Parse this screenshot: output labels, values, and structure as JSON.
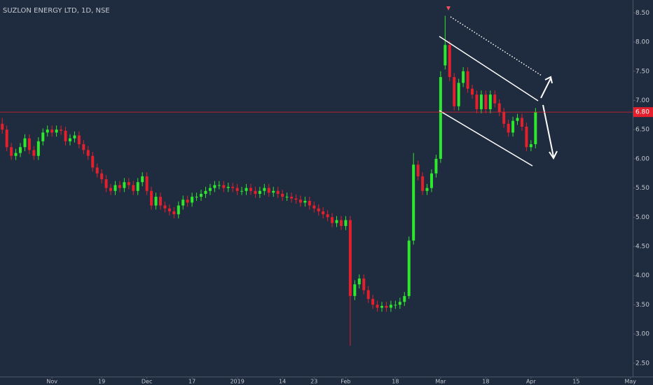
{
  "chart_data": {
    "type": "candlestick",
    "title": "SUZLON ENERGY LTD, 1D, NSE",
    "open": [
      6.6,
      6.5,
      6.2,
      6.05,
      6.1,
      6.2,
      6.35,
      6.15,
      6.05,
      6.3,
      6.45,
      6.5,
      6.45,
      6.5,
      6.48,
      6.3,
      6.35,
      6.4,
      6.25,
      6.15,
      6.05,
      5.85,
      5.75,
      5.65,
      5.5,
      5.45,
      5.55,
      5.5,
      5.6,
      5.55,
      5.45,
      5.6,
      5.7,
      5.45,
      5.2,
      5.35,
      5.2,
      5.15,
      5.1,
      5.05,
      5.2,
      5.3,
      5.25,
      5.35,
      5.35,
      5.4,
      5.45,
      5.5,
      5.55,
      5.55,
      5.5,
      5.52,
      5.5,
      5.45,
      5.45,
      5.5,
      5.45,
      5.4,
      5.45,
      5.5,
      5.42,
      5.45,
      5.4,
      5.35,
      5.35,
      5.32,
      5.3,
      5.25,
      5.28,
      5.2,
      5.15,
      5.1,
      5.05,
      5.0,
      4.9,
      4.95,
      4.85,
      4.95,
      3.65,
      3.85,
      3.95,
      3.75,
      3.6,
      3.5,
      3.45,
      3.48,
      3.45,
      3.5,
      3.5,
      3.55,
      3.65,
      4.6,
      5.9,
      5.7,
      5.45,
      5.5,
      5.75,
      6.0,
      7.6,
      7.95,
      7.4,
      6.9,
      7.3,
      7.5,
      7.2,
      7.1,
      6.85,
      7.1,
      6.85,
      7.1,
      6.95,
      6.8,
      6.6,
      6.45,
      6.65,
      6.7,
      6.55,
      6.2,
      6.25
    ],
    "high": [
      6.7,
      6.57,
      6.27,
      6.17,
      6.27,
      6.42,
      6.42,
      6.22,
      6.37,
      6.52,
      6.57,
      6.57,
      6.57,
      6.57,
      6.55,
      6.42,
      6.47,
      6.47,
      6.32,
      6.22,
      6.12,
      5.92,
      5.82,
      5.72,
      5.57,
      5.62,
      5.62,
      5.67,
      5.67,
      5.62,
      5.67,
      5.77,
      5.77,
      5.52,
      5.42,
      5.42,
      5.27,
      5.22,
      5.17,
      5.27,
      5.37,
      5.37,
      5.42,
      5.42,
      5.47,
      5.52,
      5.57,
      5.62,
      5.62,
      5.62,
      5.59,
      5.59,
      5.57,
      5.52,
      5.57,
      5.57,
      5.52,
      5.52,
      5.57,
      5.57,
      5.52,
      5.52,
      5.47,
      5.42,
      5.42,
      5.39,
      5.37,
      5.35,
      5.35,
      5.27,
      5.22,
      5.17,
      5.12,
      5.07,
      5.02,
      5.02,
      5.02,
      5.02,
      3.92,
      4.02,
      4.02,
      3.82,
      3.67,
      3.57,
      3.55,
      3.55,
      3.57,
      3.57,
      3.62,
      3.72,
      4.67,
      6.1,
      5.97,
      5.77,
      5.57,
      5.82,
      6.07,
      7.5,
      8.45,
      8.02,
      7.47,
      7.37,
      7.57,
      7.57,
      7.27,
      7.17,
      7.17,
      7.17,
      7.17,
      7.17,
      7.02,
      6.87,
      6.67,
      6.72,
      6.77,
      6.77,
      6.62,
      6.32,
      6.87
    ],
    "low": [
      6.43,
      6.13,
      5.98,
      5.98,
      6.03,
      6.13,
      6.08,
      5.98,
      5.98,
      6.23,
      6.38,
      6.38,
      6.38,
      6.41,
      6.23,
      6.23,
      6.28,
      6.18,
      6.08,
      5.98,
      5.78,
      5.68,
      5.58,
      5.43,
      5.38,
      5.38,
      5.43,
      5.43,
      5.48,
      5.38,
      5.38,
      5.53,
      5.38,
      5.13,
      5.13,
      5.13,
      5.08,
      5.03,
      4.98,
      4.98,
      5.13,
      5.18,
      5.18,
      5.28,
      5.28,
      5.33,
      5.38,
      5.43,
      5.48,
      5.43,
      5.43,
      5.43,
      5.38,
      5.38,
      5.38,
      5.38,
      5.33,
      5.33,
      5.38,
      5.35,
      5.35,
      5.33,
      5.28,
      5.28,
      5.25,
      5.23,
      5.18,
      5.18,
      5.13,
      5.08,
      5.03,
      4.98,
      4.93,
      4.83,
      4.83,
      4.78,
      4.78,
      2.8,
      3.58,
      3.78,
      3.68,
      3.53,
      3.43,
      3.38,
      3.38,
      3.38,
      3.38,
      3.43,
      3.43,
      3.48,
      3.6,
      4.53,
      5.63,
      5.38,
      5.38,
      5.43,
      5.68,
      5.93,
      7.53,
      7.33,
      6.83,
      6.83,
      7.23,
      7.13,
      7.03,
      6.78,
      6.78,
      6.78,
      6.78,
      6.88,
      6.73,
      6.53,
      6.38,
      6.38,
      6.58,
      6.48,
      6.13,
      6.13,
      6.18
    ],
    "close": [
      6.5,
      6.2,
      6.05,
      6.1,
      6.2,
      6.35,
      6.15,
      6.05,
      6.3,
      6.45,
      6.5,
      6.45,
      6.5,
      6.48,
      6.3,
      6.35,
      6.4,
      6.25,
      6.15,
      6.05,
      5.85,
      5.75,
      5.65,
      5.5,
      5.45,
      5.55,
      5.5,
      5.6,
      5.55,
      5.45,
      5.6,
      5.7,
      5.45,
      5.2,
      5.35,
      5.2,
      5.15,
      5.1,
      5.05,
      5.2,
      5.3,
      5.25,
      5.35,
      5.35,
      5.4,
      5.45,
      5.5,
      5.55,
      5.55,
      5.5,
      5.52,
      5.5,
      5.45,
      5.45,
      5.5,
      5.45,
      5.4,
      5.45,
      5.5,
      5.42,
      5.45,
      5.4,
      5.35,
      5.35,
      5.32,
      5.3,
      5.25,
      5.28,
      5.2,
      5.15,
      5.1,
      5.05,
      5.0,
      4.9,
      4.95,
      4.85,
      4.95,
      3.65,
      3.85,
      3.95,
      3.75,
      3.6,
      3.5,
      3.45,
      3.48,
      3.45,
      3.5,
      3.5,
      3.55,
      3.65,
      4.6,
      5.9,
      5.7,
      5.45,
      5.5,
      5.75,
      6.0,
      7.4,
      7.95,
      7.4,
      6.9,
      7.3,
      7.5,
      7.2,
      7.1,
      6.85,
      7.1,
      6.85,
      7.1,
      6.95,
      6.8,
      6.6,
      6.45,
      6.65,
      6.7,
      6.55,
      6.2,
      6.25,
      6.8
    ],
    "up_color": "#2ee82e",
    "down_color": "#e3202c",
    "xlim": [
      -0.5,
      139.5
    ],
    "xticks": [
      {
        "value": 11,
        "label": "Nov"
      },
      {
        "value": 22,
        "label": "19"
      },
      {
        "value": 32,
        "label": "Dec"
      },
      {
        "value": 42,
        "label": "17"
      },
      {
        "value": 52,
        "label": "2019"
      },
      {
        "value": 62,
        "label": "14"
      },
      {
        "value": 69,
        "label": "23"
      },
      {
        "value": 76,
        "label": "Feb"
      },
      {
        "value": 87,
        "label": "18"
      },
      {
        "value": 97,
        "label": "Mar"
      },
      {
        "value": 107,
        "label": "18"
      },
      {
        "value": 117,
        "label": "Apr"
      },
      {
        "value": 127,
        "label": "15"
      },
      {
        "value": 139,
        "label": "May"
      }
    ],
    "ylim": [
      2.27,
      8.72
    ],
    "yticks": [
      {
        "value": 2.5,
        "label": "2.50"
      },
      {
        "value": 3,
        "label": "3.00"
      },
      {
        "value": 3.5,
        "label": "3.50"
      },
      {
        "value": 4,
        "label": "4.00"
      },
      {
        "value": 4.5,
        "label": "4.50"
      },
      {
        "value": 5,
        "label": "5.00"
      },
      {
        "value": 5.5,
        "label": "5.50"
      },
      {
        "value": 6,
        "label": "6.00"
      },
      {
        "value": 6.5,
        "label": "6.50"
      },
      {
        "value": 7,
        "label": "7.00"
      },
      {
        "value": 7.5,
        "label": "7.50"
      },
      {
        "value": 8,
        "label": "8.00"
      },
      {
        "value": 8.5,
        "label": "8.50"
      }
    ],
    "last_price": {
      "value": 6.8,
      "label": "6.80"
    },
    "last_price_color": "#e3202c"
  }
}
